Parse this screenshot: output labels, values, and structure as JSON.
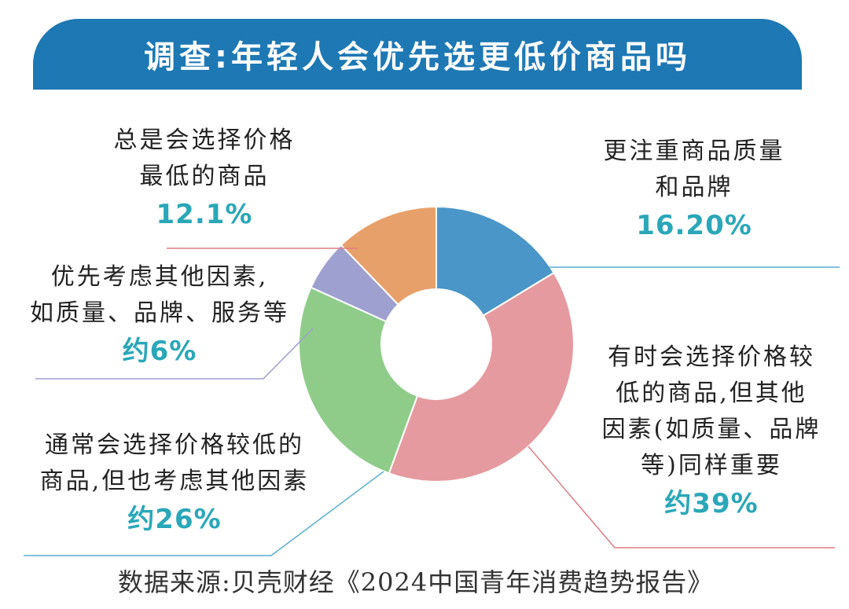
{
  "title": "调查:年轻人会优先选更低价商品吗",
  "source": "数据来源:贝壳财经《2024中国青年消费趋势报告》",
  "colors": {
    "title_bg": "#1d78b4",
    "percent_text": "#2aa7b8"
  },
  "chart_data": {
    "type": "pie",
    "donut": true,
    "slices": [
      {
        "id": "quality",
        "lines": [
          "更注重商品质量",
          "和品牌"
        ],
        "value": 16.2,
        "value_label": "16.20%",
        "color": "#4a96c8",
        "leader_color": "#5aaed0"
      },
      {
        "id": "sometimes",
        "lines": [
          "有时会选择价格较",
          "低的商品,但其他",
          "因素(如质量、品牌",
          "等)同样重要"
        ],
        "value": 39,
        "value_label": "约39%",
        "color": "#e59a9f",
        "leader_color": "#e07c84"
      },
      {
        "id": "usually",
        "lines": [
          "通常会选择价格较低的",
          "商品,但也考虑其他因素"
        ],
        "value": 26,
        "value_label": "约26%",
        "color": "#8fcc8a",
        "leader_color": "#5aaed0"
      },
      {
        "id": "prefer_other",
        "lines": [
          "优先考虑其他因素,",
          "如质量、品牌、服务等"
        ],
        "value": 6,
        "value_label": "约6%",
        "color": "#9ea0cf",
        "leader_color": "#9ea0cf"
      },
      {
        "id": "lowest",
        "lines": [
          "总是会选择价格",
          "最低的商品"
        ],
        "value": 12.1,
        "value_label": "12.1%",
        "color": "#e8a06a",
        "leader_color": "#e07c84"
      }
    ]
  }
}
